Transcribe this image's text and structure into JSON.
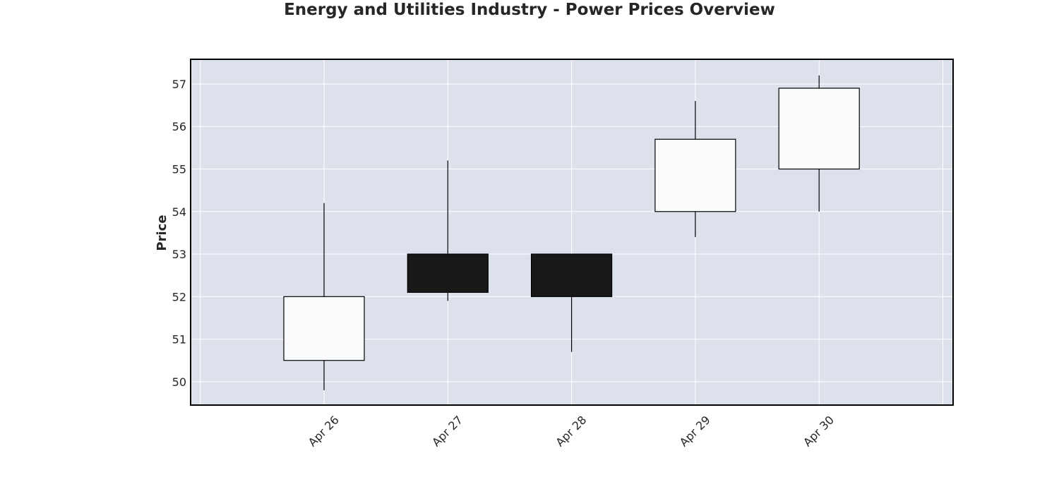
{
  "chart_data": {
    "type": "candlestick",
    "title": "Energy and Utilities Industry - Power Prices Overview",
    "xlabel": "",
    "ylabel": "Price",
    "ylim": [
      49.45,
      57.58
    ],
    "yticks": [
      50,
      51,
      52,
      53,
      54,
      55,
      56,
      57
    ],
    "grid": true,
    "colors": {
      "background": "#dce1ec",
      "up": "#fafbfd",
      "down": "#181818",
      "wick": "#000000",
      "frame": "#000000"
    },
    "categories": [
      "Apr 26",
      "Apr 27",
      "Apr 28",
      "Apr 29",
      "Apr 30"
    ],
    "series": [
      {
        "open": [
          50.5,
          53.0,
          53.0,
          54.0,
          55.0
        ],
        "high": [
          54.2,
          55.2,
          53.0,
          56.6,
          57.2
        ],
        "low": [
          49.8,
          51.9,
          50.7,
          53.4,
          54.0
        ],
        "close": [
          52.0,
          52.1,
          52.0,
          55.7,
          56.9
        ]
      }
    ]
  }
}
